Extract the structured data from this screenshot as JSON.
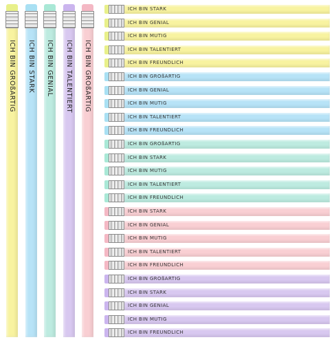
{
  "colors": {
    "yellow": "#f8f3a0",
    "blue": "#b7e3f7",
    "green": "#bdebe0",
    "purple": "#d8c8f0",
    "pink": "#f9cfd3"
  },
  "eraser_colors": {
    "yellow": "#e8f08a",
    "blue": "#a9e0f3",
    "green": "#a9e8d6",
    "purple": "#cbb5ee",
    "pink": "#f4b8c4"
  },
  "vertical_pencils": [
    {
      "color": "yellow",
      "text": "ICH BIN GROßARTIG"
    },
    {
      "color": "blue",
      "text": "ICH BIN STARK"
    },
    {
      "color": "green",
      "text": "ICH BIN GENIAL"
    },
    {
      "color": "purple",
      "text": "ICH BIN TALENTIERT"
    },
    {
      "color": "pink",
      "text": "ICH BIN GROßARTIG"
    }
  ],
  "horizontal_pencils": [
    {
      "color": "yellow",
      "text": "ICH BIN STARK"
    },
    {
      "color": "yellow",
      "text": "ICH BIN GENIAL"
    },
    {
      "color": "yellow",
      "text": "ICH BIN MUTIG"
    },
    {
      "color": "yellow",
      "text": "ICH BIN TALENTIERT"
    },
    {
      "color": "yellow",
      "text": "ICH BIN FREUNDLICH"
    },
    {
      "color": "blue",
      "text": "ICH BIN GROßARTIG"
    },
    {
      "color": "blue",
      "text": "ICH BIN GENIAL"
    },
    {
      "color": "blue",
      "text": "ICH BIN MUTIG"
    },
    {
      "color": "blue",
      "text": "ICH BIN TALENTIERT"
    },
    {
      "color": "blue",
      "text": "ICH BIN FREUNDLICH"
    },
    {
      "color": "green",
      "text": "ICH BIN GROßARTIG"
    },
    {
      "color": "green",
      "text": "ICH BIN STARK"
    },
    {
      "color": "green",
      "text": "ICH BIN MUTIG"
    },
    {
      "color": "green",
      "text": "ICH BIN TALENTIERT"
    },
    {
      "color": "green",
      "text": "ICH BIN FREUNDLICH"
    },
    {
      "color": "pink",
      "text": "ICH BIN STARK"
    },
    {
      "color": "pink",
      "text": "ICH BIN GENIAL"
    },
    {
      "color": "pink",
      "text": "ICH BIN MUTIG"
    },
    {
      "color": "pink",
      "text": "ICH BIN TALENTIERT"
    },
    {
      "color": "pink",
      "text": "ICH BIN FREUNDLICH"
    },
    {
      "color": "purple",
      "text": "ICH BIN GROßARTIG"
    },
    {
      "color": "purple",
      "text": "ICH BIN STARK"
    },
    {
      "color": "purple",
      "text": "ICH BIN GENIAL"
    },
    {
      "color": "purple",
      "text": "ICH BIN MUTIG"
    },
    {
      "color": "purple",
      "text": "ICH BIN FREUNDLICH"
    }
  ]
}
